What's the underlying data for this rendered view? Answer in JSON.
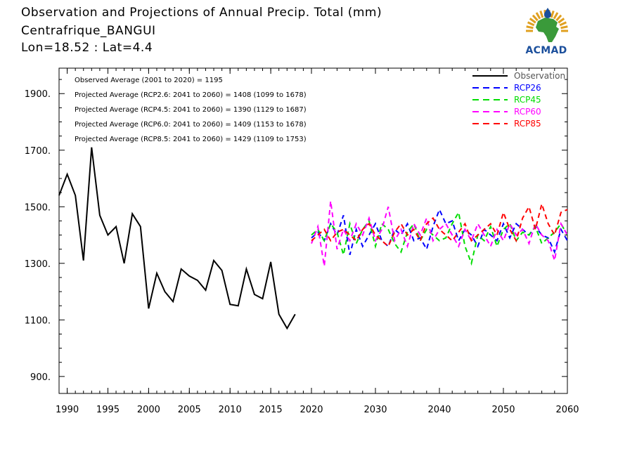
{
  "header": {
    "title": "Observation and Projections of Annual Precip. Total (mm)",
    "station": "Centrafrique_BANGUI",
    "coords": "Lon=18.52 : Lat=4.4",
    "logo_text": "ACMAD"
  },
  "colors": {
    "observation": "#000000",
    "rcp26": "#0000ff",
    "rcp45": "#00dd00",
    "rcp60": "#ff00ff",
    "rcp85": "#ff0000",
    "logo_blue": "#1b4f9c",
    "logo_green": "#3a9a3a",
    "logo_gold": "#e0a020"
  },
  "chart_data": {
    "type": "line",
    "xlim": [
      1989,
      2060
    ],
    "ylim": [
      840,
      1990
    ],
    "x_ticks": [
      1990,
      1995,
      2000,
      2005,
      2010,
      2015,
      2020,
      2030,
      2040,
      2050,
      2060
    ],
    "y_ticks": [
      900,
      1100,
      1300,
      1500,
      1700,
      1900
    ],
    "y_tick_labels": [
      "900.",
      "1100.",
      "1300.",
      "1500.",
      "1700.",
      "1900."
    ],
    "grid": false,
    "legend_position": "top-right",
    "annotations": [
      "Observed Average (2001 to 2020) = 1195",
      "Projected Average (RCP2.6: 2041 to 2060) = 1408 (1099 to 1678)",
      "Projected Average (RCP4.5: 2041 to 2060) = 1390 (1129 to 1687)",
      "Projected Average (RCP6.0: 2041 to 2060) = 1409 (1153 to 1678)",
      "Projected Average (RCP8.5: 2041 to 2060) = 1429 (1109 to 1753)"
    ],
    "series": [
      {
        "name": "Observation",
        "style": "solid",
        "x": [
          1989,
          1990,
          1991,
          1992,
          1993,
          1994,
          1995,
          1996,
          1997,
          1998,
          1999,
          2000,
          2001,
          2002,
          2003,
          2004,
          2005,
          2006,
          2007,
          2008,
          2009,
          2010,
          2011,
          2012,
          2013,
          2014,
          2015,
          2016,
          2017,
          2018,
          2019,
          2020
        ],
        "values": [
          1540,
          1615,
          1540,
          1310,
          1710,
          1470,
          1400,
          1430,
          1300,
          1475,
          1430,
          1140,
          1265,
          1200,
          1165,
          1280,
          1255,
          1240,
          1205,
          1310,
          1275,
          1155,
          1150,
          1280,
          1190,
          1175,
          1305,
          1120,
          1070,
          1120,
          null,
          null
        ]
      },
      {
        "name": "RCP26",
        "style": "dashed",
        "x": [
          2020,
          2021,
          2022,
          2023,
          2024,
          2025,
          2026,
          2027,
          2028,
          2029,
          2030,
          2031,
          2032,
          2033,
          2034,
          2035,
          2036,
          2037,
          2038,
          2039,
          2040,
          2041,
          2042,
          2043,
          2044,
          2045,
          2046,
          2047,
          2048,
          2049,
          2050,
          2051,
          2052,
          2053,
          2054,
          2055,
          2056,
          2057,
          2058,
          2059,
          2060
        ],
        "values": [
          1390,
          1410,
          1380,
          1440,
          1400,
          1470,
          1330,
          1420,
          1360,
          1400,
          1440,
          1380,
          1360,
          1420,
          1400,
          1440,
          1380,
          1390,
          1350,
          1430,
          1490,
          1440,
          1450,
          1380,
          1420,
          1400,
          1360,
          1420,
          1400,
          1380,
          1440,
          1390,
          1440,
          1420,
          1400,
          1430,
          1400,
          1390,
          1340,
          1420,
          1380
        ]
      },
      {
        "name": "RCP45",
        "style": "dashed",
        "x": [
          2020,
          2021,
          2022,
          2023,
          2024,
          2025,
          2026,
          2027,
          2028,
          2029,
          2030,
          2031,
          2032,
          2033,
          2034,
          2035,
          2036,
          2037,
          2038,
          2039,
          2040,
          2041,
          2042,
          2043,
          2044,
          2045,
          2046,
          2047,
          2048,
          2049,
          2050,
          2051,
          2052,
          2053,
          2054,
          2055,
          2056,
          2057,
          2058,
          2059,
          2060
        ],
        "values": [
          1400,
          1420,
          1380,
          1440,
          1410,
          1330,
          1440,
          1370,
          1420,
          1450,
          1360,
          1440,
          1420,
          1370,
          1340,
          1410,
          1440,
          1380,
          1420,
          1400,
          1380,
          1390,
          1440,
          1480,
          1360,
          1300,
          1400,
          1380,
          1430,
          1360,
          1420,
          1440,
          1380,
          1410,
          1400,
          1430,
          1370,
          1390,
          1410,
          1440,
          1400
        ]
      },
      {
        "name": "RCP60",
        "style": "dashed",
        "x": [
          2020,
          2021,
          2022,
          2023,
          2024,
          2025,
          2026,
          2027,
          2028,
          2029,
          2030,
          2031,
          2032,
          2033,
          2034,
          2035,
          2036,
          2037,
          2038,
          2039,
          2040,
          2041,
          2042,
          2043,
          2044,
          2045,
          2046,
          2047,
          2048,
          2049,
          2050,
          2051,
          2052,
          2053,
          2054,
          2055,
          2056,
          2057,
          2058,
          2059,
          2060
        ],
        "values": [
          1370,
          1430,
          1290,
          1520,
          1350,
          1420,
          1380,
          1440,
          1400,
          1460,
          1380,
          1420,
          1500,
          1380,
          1420,
          1360,
          1440,
          1400,
          1460,
          1380,
          1420,
          1440,
          1400,
          1360,
          1420,
          1380,
          1440,
          1400,
          1360,
          1420,
          1380,
          1440,
          1400,
          1420,
          1370,
          1440,
          1400,
          1380,
          1310,
          1440,
          1400
        ]
      },
      {
        "name": "RCP85",
        "style": "dashed",
        "x": [
          2020,
          2021,
          2022,
          2023,
          2024,
          2025,
          2026,
          2027,
          2028,
          2029,
          2030,
          2031,
          2032,
          2033,
          2034,
          2035,
          2036,
          2037,
          2038,
          2039,
          2040,
          2041,
          2042,
          2043,
          2044,
          2045,
          2046,
          2047,
          2048,
          2049,
          2050,
          2051,
          2052,
          2053,
          2054,
          2055,
          2056,
          2057,
          2058,
          2059,
          2060
        ],
        "values": [
          1380,
          1400,
          1420,
          1380,
          1410,
          1420,
          1400,
          1380,
          1420,
          1440,
          1400,
          1380,
          1360,
          1410,
          1440,
          1400,
          1420,
          1380,
          1440,
          1460,
          1420,
          1400,
          1380,
          1410,
          1440,
          1380,
          1400,
          1420,
          1440,
          1400,
          1480,
          1420,
          1380,
          1460,
          1500,
          1420,
          1510,
          1440,
          1400,
          1480,
          1490
        ]
      }
    ]
  }
}
